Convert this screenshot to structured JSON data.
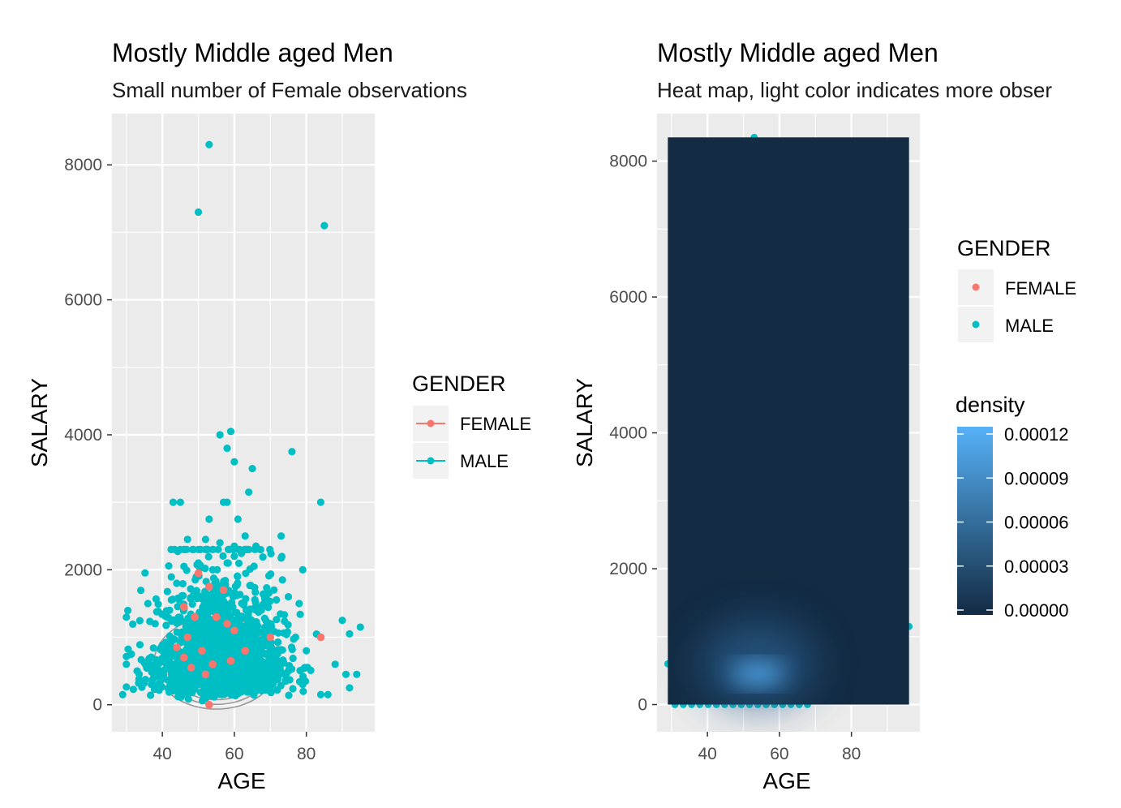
{
  "chart_data": [
    {
      "type": "scatter",
      "title": "Mostly Middle aged Men",
      "subtitle": "Small number of Female observations",
      "xlabel": "AGE",
      "ylabel": "SALARY",
      "xlim": [
        26,
        99
      ],
      "ylim": [
        -400,
        8760
      ],
      "x_ticks": [
        40,
        60,
        80
      ],
      "y_ticks": [
        0,
        2000,
        4000,
        6000,
        8000
      ],
      "grid": true,
      "legend": {
        "title": "GENDER",
        "position": "right",
        "entries": [
          {
            "label": "FEMALE",
            "color": "#F8766D"
          },
          {
            "label": "MALE",
            "color": "#00BFC4"
          }
        ]
      },
      "overlay": "2d density contours (#999999)",
      "series": [
        {
          "name": "MALE",
          "color": "#00BFC4",
          "points": [
            [
              53,
              8300
            ],
            [
              50,
              7300
            ],
            [
              85,
              7100
            ],
            [
              59,
              4050
            ],
            [
              56,
              4000
            ],
            [
              58,
              3800
            ],
            [
              76,
              3750
            ],
            [
              60,
              3600
            ],
            [
              65,
              3500
            ],
            [
              64,
              3150
            ],
            [
              84,
              3000
            ],
            [
              43,
              3000
            ],
            [
              45,
              3000
            ],
            [
              57,
              3000
            ],
            [
              58,
              3000
            ],
            [
              53,
              2750
            ],
            [
              61,
              2750
            ],
            [
              63,
              2500
            ],
            [
              73,
              2500
            ],
            [
              47,
              2450
            ],
            [
              52,
              2450
            ],
            [
              56,
              2400
            ],
            [
              60,
              2350
            ],
            [
              66,
              2350
            ],
            [
              45,
              2300
            ],
            [
              60,
              2200
            ],
            [
              50,
              2100
            ],
            [
              58,
              2100
            ],
            [
              46,
              2050
            ],
            [
              54,
              2000
            ],
            [
              79,
              2000
            ],
            [
              90,
              1250
            ],
            [
              95,
              1150
            ],
            [
              92,
              1050
            ],
            [
              88,
              600
            ],
            [
              91,
              450
            ],
            [
              94,
              450
            ],
            [
              92,
              250
            ],
            [
              30,
              600
            ],
            [
              33,
              500
            ],
            [
              29,
              150
            ],
            [
              84,
              150
            ],
            [
              86,
              150
            ],
            [
              79,
              300
            ],
            [
              80,
              800
            ],
            [
              77,
              1000
            ],
            [
              75,
              1600
            ],
            [
              78,
              1500
            ],
            [
              71,
              1700
            ],
            [
              69,
              1500
            ],
            [
              36,
              1500
            ],
            [
              38,
              1200
            ],
            [
              42,
              1400
            ],
            [
              44,
              1800
            ]
          ]
        },
        {
          "name": "FEMALE",
          "color": "#F8766D",
          "points": [
            [
              50,
              1950
            ],
            [
              53,
              1750
            ],
            [
              57,
              1700
            ],
            [
              46,
              1450
            ],
            [
              49,
              1300
            ],
            [
              55,
              1300
            ],
            [
              58,
              1200
            ],
            [
              60,
              1100
            ],
            [
              47,
              1000
            ],
            [
              44,
              850
            ],
            [
              51,
              800
            ],
            [
              63,
              800
            ],
            [
              70,
              1000
            ],
            [
              84,
              1000
            ],
            [
              52,
              450
            ],
            [
              54,
              600
            ],
            [
              48,
              550
            ],
            [
              53,
              0
            ],
            [
              46,
              700
            ],
            [
              59,
              650
            ]
          ]
        }
      ]
    },
    {
      "type": "heatmap",
      "title": "Mostly Middle aged Men",
      "subtitle": "Heat map, light color indicates more obser",
      "xlabel": "AGE",
      "ylabel": "SALARY",
      "xlim": [
        26,
        99
      ],
      "ylim": [
        -400,
        8700
      ],
      "x_ticks": [
        40,
        60,
        80
      ],
      "y_ticks": [
        0,
        2000,
        4000,
        6000,
        8000
      ],
      "grid": true,
      "density_peak": {
        "x": 54,
        "y": 450,
        "value": 0.00012
      },
      "density_range": [
        0,
        8350
      ],
      "age_range": [
        29,
        96
      ],
      "legend": {
        "title": "GENDER",
        "position": "right",
        "entries": [
          {
            "label": "FEMALE",
            "color": "#F8766D"
          },
          {
            "label": "MALE",
            "color": "#00BFC4"
          }
        ]
      },
      "colorbar": {
        "title": "density",
        "ticks": [
          "0.00012",
          "0.00009",
          "0.00006",
          "0.00003",
          "0.00000"
        ],
        "tick_values": [
          0.00012,
          9e-05,
          6e-05,
          3e-05,
          0
        ],
        "low_color": "#132B43",
        "high_color": "#56B1F7"
      },
      "series": [
        {
          "name": "MALE",
          "color": "#00BFC4",
          "points": [
            [
              53,
              8350
            ],
            [
              29,
              600
            ],
            [
              96,
              1150
            ]
          ]
        }
      ]
    }
  ]
}
